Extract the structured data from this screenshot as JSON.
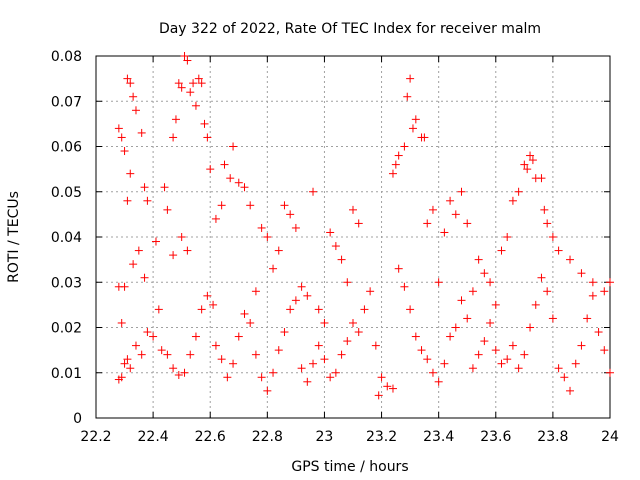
{
  "chart_data": {
    "type": "scatter",
    "title": "Day 322 of 2022, Rate Of TEC Index for receiver malm",
    "xlabel": "GPS time / hours",
    "ylabel": "ROTI / TECUs",
    "xlim": [
      22.2,
      24
    ],
    "ylim": [
      0,
      0.08
    ],
    "x_ticks": [
      "22.2",
      "22.4",
      "22.6",
      "22.8",
      "23",
      "23.2",
      "23.4",
      "23.6",
      "23.8",
      "24"
    ],
    "y_ticks": [
      "0",
      "0.01",
      "0.02",
      "0.03",
      "0.04",
      "0.05",
      "0.06",
      "0.07",
      "0.08"
    ],
    "grid": true,
    "marker": "+",
    "series": [
      {
        "name": "ROTI",
        "color": "#ff0000",
        "points": [
          [
            22.28,
            0.064
          ],
          [
            22.29,
            0.062
          ],
          [
            22.3,
            0.059
          ],
          [
            22.31,
            0.075
          ],
          [
            22.32,
            0.074
          ],
          [
            22.33,
            0.071
          ],
          [
            22.34,
            0.068
          ],
          [
            22.32,
            0.054
          ],
          [
            22.31,
            0.048
          ],
          [
            22.36,
            0.063
          ],
          [
            22.37,
            0.051
          ],
          [
            22.38,
            0.048
          ],
          [
            22.28,
            0.029
          ],
          [
            22.3,
            0.029
          ],
          [
            22.29,
            0.021
          ],
          [
            22.33,
            0.034
          ],
          [
            22.35,
            0.037
          ],
          [
            22.37,
            0.031
          ],
          [
            22.28,
            0.0085
          ],
          [
            22.29,
            0.009
          ],
          [
            22.3,
            0.012
          ],
          [
            22.31,
            0.013
          ],
          [
            22.32,
            0.011
          ],
          [
            22.34,
            0.016
          ],
          [
            22.36,
            0.014
          ],
          [
            22.38,
            0.019
          ],
          [
            22.4,
            0.018
          ],
          [
            22.42,
            0.024
          ],
          [
            22.41,
            0.039
          ],
          [
            22.44,
            0.051
          ],
          [
            22.45,
            0.046
          ],
          [
            22.47,
            0.062
          ],
          [
            22.48,
            0.066
          ],
          [
            22.49,
            0.074
          ],
          [
            22.5,
            0.073
          ],
          [
            22.51,
            0.08
          ],
          [
            22.52,
            0.079
          ],
          [
            22.53,
            0.072
          ],
          [
            22.54,
            0.074
          ],
          [
            22.55,
            0.069
          ],
          [
            22.56,
            0.075
          ],
          [
            22.57,
            0.074
          ],
          [
            22.58,
            0.065
          ],
          [
            22.59,
            0.062
          ],
          [
            22.6,
            0.055
          ],
          [
            22.47,
            0.036
          ],
          [
            22.5,
            0.04
          ],
          [
            22.52,
            0.037
          ],
          [
            22.43,
            0.015
          ],
          [
            22.45,
            0.014
          ],
          [
            22.47,
            0.011
          ],
          [
            22.49,
            0.0095
          ],
          [
            22.51,
            0.01
          ],
          [
            22.53,
            0.014
          ],
          [
            22.55,
            0.018
          ],
          [
            22.57,
            0.024
          ],
          [
            22.59,
            0.027
          ],
          [
            22.61,
            0.025
          ],
          [
            22.62,
            0.044
          ],
          [
            22.64,
            0.047
          ],
          [
            22.65,
            0.056
          ],
          [
            22.67,
            0.053
          ],
          [
            22.68,
            0.06
          ],
          [
            22.7,
            0.052
          ],
          [
            22.72,
            0.051
          ],
          [
            22.74,
            0.047
          ],
          [
            22.62,
            0.016
          ],
          [
            22.64,
            0.013
          ],
          [
            22.66,
            0.009
          ],
          [
            22.68,
            0.012
          ],
          [
            22.7,
            0.018
          ],
          [
            22.72,
            0.023
          ],
          [
            22.74,
            0.021
          ],
          [
            22.76,
            0.028
          ],
          [
            22.78,
            0.042
          ],
          [
            22.8,
            0.04
          ],
          [
            22.82,
            0.033
          ],
          [
            22.84,
            0.037
          ],
          [
            22.86,
            0.047
          ],
          [
            22.88,
            0.045
          ],
          [
            22.9,
            0.042
          ],
          [
            22.76,
            0.014
          ],
          [
            22.78,
            0.009
          ],
          [
            22.8,
            0.006
          ],
          [
            22.82,
            0.01
          ],
          [
            22.84,
            0.015
          ],
          [
            22.86,
            0.019
          ],
          [
            22.88,
            0.024
          ],
          [
            22.9,
            0.026
          ],
          [
            22.92,
            0.029
          ],
          [
            22.94,
            0.027
          ],
          [
            22.96,
            0.05
          ],
          [
            22.98,
            0.024
          ],
          [
            23.0,
            0.021
          ],
          [
            22.92,
            0.011
          ],
          [
            22.94,
            0.008
          ],
          [
            22.96,
            0.012
          ],
          [
            22.98,
            0.016
          ],
          [
            23.0,
            0.013
          ],
          [
            23.02,
            0.041
          ],
          [
            23.04,
            0.038
          ],
          [
            23.06,
            0.035
          ],
          [
            23.08,
            0.03
          ],
          [
            23.1,
            0.046
          ],
          [
            23.12,
            0.043
          ],
          [
            23.02,
            0.009
          ],
          [
            23.04,
            0.01
          ],
          [
            23.06,
            0.014
          ],
          [
            23.08,
            0.017
          ],
          [
            23.1,
            0.021
          ],
          [
            23.12,
            0.019
          ],
          [
            23.14,
            0.024
          ],
          [
            23.16,
            0.028
          ],
          [
            23.18,
            0.016
          ],
          [
            23.2,
            0.009
          ],
          [
            23.22,
            0.007
          ],
          [
            23.24,
            0.0065
          ],
          [
            23.19,
            0.005
          ],
          [
            23.24,
            0.054
          ],
          [
            23.25,
            0.056
          ],
          [
            23.26,
            0.058
          ],
          [
            23.28,
            0.06
          ],
          [
            23.29,
            0.071
          ],
          [
            23.3,
            0.075
          ],
          [
            23.31,
            0.064
          ],
          [
            23.32,
            0.066
          ],
          [
            23.34,
            0.062
          ],
          [
            23.35,
            0.062
          ],
          [
            23.36,
            0.043
          ],
          [
            23.38,
            0.046
          ],
          [
            23.26,
            0.033
          ],
          [
            23.28,
            0.029
          ],
          [
            23.3,
            0.024
          ],
          [
            23.32,
            0.018
          ],
          [
            23.34,
            0.015
          ],
          [
            23.36,
            0.013
          ],
          [
            23.38,
            0.01
          ],
          [
            23.4,
            0.03
          ],
          [
            23.42,
            0.041
          ],
          [
            23.44,
            0.048
          ],
          [
            23.46,
            0.045
          ],
          [
            23.48,
            0.05
          ],
          [
            23.5,
            0.043
          ],
          [
            23.4,
            0.008
          ],
          [
            23.42,
            0.012
          ],
          [
            23.44,
            0.018
          ],
          [
            23.46,
            0.02
          ],
          [
            23.48,
            0.026
          ],
          [
            23.5,
            0.022
          ],
          [
            23.52,
            0.028
          ],
          [
            23.54,
            0.035
          ],
          [
            23.56,
            0.032
          ],
          [
            23.58,
            0.03
          ],
          [
            23.6,
            0.025
          ],
          [
            23.52,
            0.011
          ],
          [
            23.54,
            0.014
          ],
          [
            23.56,
            0.017
          ],
          [
            23.58,
            0.021
          ],
          [
            23.6,
            0.015
          ],
          [
            23.62,
            0.037
          ],
          [
            23.64,
            0.04
          ],
          [
            23.66,
            0.048
          ],
          [
            23.68,
            0.05
          ],
          [
            23.7,
            0.056
          ],
          [
            23.71,
            0.055
          ],
          [
            23.72,
            0.058
          ],
          [
            23.73,
            0.057
          ],
          [
            23.74,
            0.053
          ],
          [
            23.76,
            0.053
          ],
          [
            23.77,
            0.046
          ],
          [
            23.78,
            0.043
          ],
          [
            23.8,
            0.04
          ],
          [
            23.62,
            0.012
          ],
          [
            23.64,
            0.013
          ],
          [
            23.66,
            0.016
          ],
          [
            23.68,
            0.011
          ],
          [
            23.7,
            0.014
          ],
          [
            23.72,
            0.02
          ],
          [
            23.74,
            0.025
          ],
          [
            23.76,
            0.031
          ],
          [
            23.78,
            0.028
          ],
          [
            23.8,
            0.022
          ],
          [
            23.82,
            0.011
          ],
          [
            23.84,
            0.009
          ],
          [
            23.86,
            0.006
          ],
          [
            23.88,
            0.012
          ],
          [
            23.9,
            0.016
          ],
          [
            23.92,
            0.022
          ],
          [
            23.94,
            0.027
          ],
          [
            23.96,
            0.019
          ],
          [
            23.98,
            0.015
          ],
          [
            24.0,
            0.01
          ],
          [
            23.82,
            0.037
          ],
          [
            23.86,
            0.035
          ],
          [
            23.9,
            0.032
          ],
          [
            23.94,
            0.03
          ],
          [
            23.98,
            0.028
          ],
          [
            24.0,
            0.03
          ]
        ]
      }
    ]
  }
}
